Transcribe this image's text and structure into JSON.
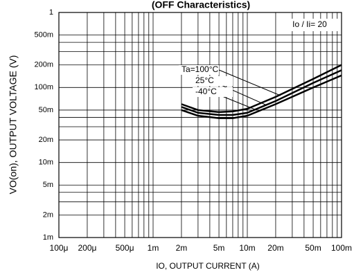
{
  "chart_data": {
    "type": "line",
    "title": "(OFF Characteristics)",
    "x_label": "IO, OUTPUT CURRENT (A)",
    "y_label": "VO(on), OUTPUT VOLTAGE (V)",
    "annotation": "Io / Ii= 20",
    "x_log": true,
    "y_log": true,
    "grid": true,
    "xlim": [
      0.0001,
      0.1
    ],
    "ylim": [
      0.001,
      1
    ],
    "xticks": [
      {
        "value": 0.0001,
        "label": "100μ"
      },
      {
        "value": 0.0002,
        "label": "200μ"
      },
      {
        "value": 0.0005,
        "label": "500μ"
      },
      {
        "value": 0.001,
        "label": "1m"
      },
      {
        "value": 0.002,
        "label": "2m"
      },
      {
        "value": 0.005,
        "label": "5m"
      },
      {
        "value": 0.01,
        "label": "10m"
      },
      {
        "value": 0.02,
        "label": "20m"
      },
      {
        "value": 0.05,
        "label": "50m"
      },
      {
        "value": 0.1,
        "label": "100m"
      }
    ],
    "x_minor_ticks": [
      0.0003,
      0.0004,
      0.0006,
      0.0007,
      0.0008,
      0.0009,
      0.003,
      0.004,
      0.006,
      0.007,
      0.008,
      0.009,
      0.03,
      0.04,
      0.06,
      0.07,
      0.08,
      0.09
    ],
    "yticks": [
      1,
      {
        "value": 0.5,
        "label": "500m"
      },
      {
        "value": 0.2,
        "label": "200m"
      },
      {
        "value": 0.1,
        "label": "100m"
      },
      {
        "value": 0.05,
        "label": "50m"
      },
      {
        "value": 0.02,
        "label": "20m"
      },
      {
        "value": 0.01,
        "label": "10m"
      },
      {
        "value": 0.005,
        "label": "5m"
      },
      {
        "value": 0.002,
        "label": "2m"
      },
      {
        "value": 0.001,
        "label": "1m"
      }
    ],
    "y_minor_ticks": [
      0.4,
      0.3,
      0.04,
      0.03,
      0.004,
      0.003
    ],
    "x": [
      0.002,
      0.003,
      0.005,
      0.007,
      0.01,
      0.02,
      0.05,
      0.1
    ],
    "series": [
      {
        "name": "Ta=100°C",
        "color": "#000000",
        "values": [
          0.06,
          0.05,
          0.047,
          0.048,
          0.052,
          0.075,
          0.13,
          0.2
        ]
      },
      {
        "name": "25°C",
        "color": "#000000",
        "values": [
          0.055,
          0.046,
          0.043,
          0.043,
          0.046,
          0.066,
          0.115,
          0.17
        ]
      },
      {
        "name": "-40°C",
        "color": "#000000",
        "values": [
          0.05,
          0.042,
          0.039,
          0.039,
          0.042,
          0.06,
          0.1,
          0.145
        ]
      }
    ]
  }
}
